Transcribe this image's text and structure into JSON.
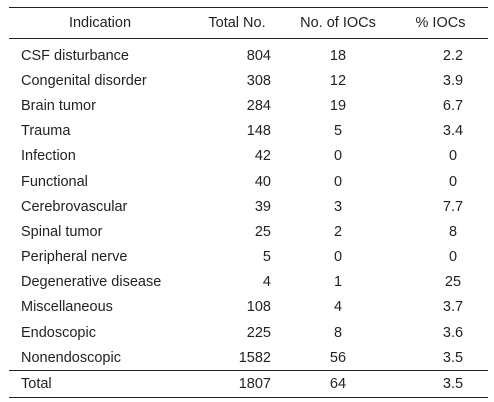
{
  "table": {
    "header": [
      "Indication",
      "Total No.",
      "No. of IOCs",
      "% IOCs"
    ],
    "rows": [
      [
        "CSF disturbance",
        "804",
        "18",
        "2.2"
      ],
      [
        "Congenital disorder",
        "308",
        "12",
        "3.9"
      ],
      [
        "Brain tumor",
        "284",
        "19",
        "6.7"
      ],
      [
        "Trauma",
        "148",
        "5",
        "3.4"
      ],
      [
        "Infection",
        "42",
        "0",
        "0"
      ],
      [
        "Functional",
        "40",
        "0",
        "0"
      ],
      [
        "Cerebrovascular",
        "39",
        "3",
        "7.7"
      ],
      [
        "Spinal tumor",
        "25",
        "2",
        "8"
      ],
      [
        "Peripheral nerve",
        "5",
        "0",
        "0"
      ],
      [
        "Degenerative disease",
        "4",
        "1",
        "25"
      ],
      [
        "Miscellaneous",
        "108",
        "4",
        "3.7"
      ],
      [
        "Endoscopic",
        "225",
        "8",
        "3.6"
      ],
      [
        "Nonendoscopic",
        "1582",
        "56",
        "3.5"
      ],
      [
        "Total",
        "1807",
        "64",
        "3.5"
      ]
    ]
  }
}
